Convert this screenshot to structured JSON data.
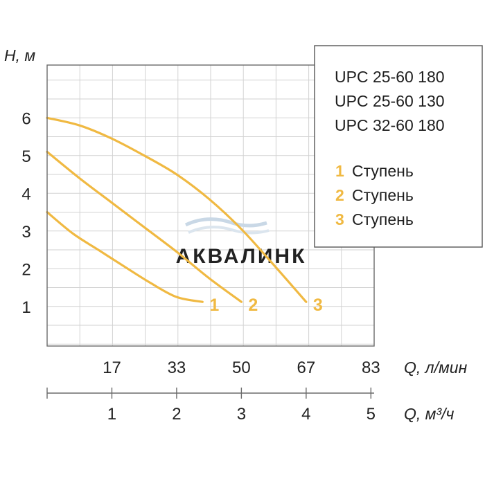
{
  "colors": {
    "curve": "#f0b942",
    "grid": "#d2d2d2",
    "axis": "#6a6a6a",
    "text": "#222222",
    "watermark": "#c9d8e6"
  },
  "watermark": {
    "text": "АКВАЛИНК"
  },
  "chart_data": {
    "type": "line",
    "title": "",
    "y_axis": {
      "label": "H, м",
      "ticks": [
        1,
        2,
        3,
        4,
        5,
        6
      ],
      "range": [
        -0.05,
        7.4
      ]
    },
    "x_axis_top": {
      "label": "Q, л/мин",
      "ticks": [
        "17",
        "33",
        "50",
        "67",
        "83"
      ],
      "tick_values": [
        1,
        2,
        3,
        4,
        5
      ]
    },
    "x_axis_bottom": {
      "label": "Q, м³/ч",
      "ticks": [
        "1",
        "2",
        "3",
        "4",
        "5"
      ],
      "tick_values": [
        1,
        2,
        3,
        4,
        5
      ]
    },
    "x_range": [
      0,
      5.05
    ],
    "grid": true,
    "legend": {
      "position": "top-right",
      "models": [
        "UPC 25-60 180",
        "UPC 25-60 130",
        "UPC 32-60 180"
      ],
      "stages": [
        {
          "num": "1",
          "label": "Ступень"
        },
        {
          "num": "2",
          "label": "Ступень"
        },
        {
          "num": "3",
          "label": "Ступень"
        }
      ]
    },
    "series": [
      {
        "name": "1",
        "x": [
          0,
          0.4,
          0.8,
          1.2,
          1.6,
          2.0,
          2.4
        ],
        "y": [
          3.5,
          2.93,
          2.49,
          2.05,
          1.62,
          1.25,
          1.12
        ]
      },
      {
        "name": "2",
        "x": [
          0,
          0.5,
          1.0,
          1.5,
          2.0,
          2.5,
          3.0
        ],
        "y": [
          5.1,
          4.4,
          3.75,
          3.1,
          2.45,
          1.75,
          1.12
        ]
      },
      {
        "name": "3",
        "x": [
          0,
          0.5,
          1.0,
          1.5,
          2.0,
          2.5,
          3.0,
          3.5,
          4.0
        ],
        "y": [
          6.0,
          5.8,
          5.45,
          5.0,
          4.5,
          3.85,
          3.05,
          2.1,
          1.12
        ]
      }
    ]
  }
}
